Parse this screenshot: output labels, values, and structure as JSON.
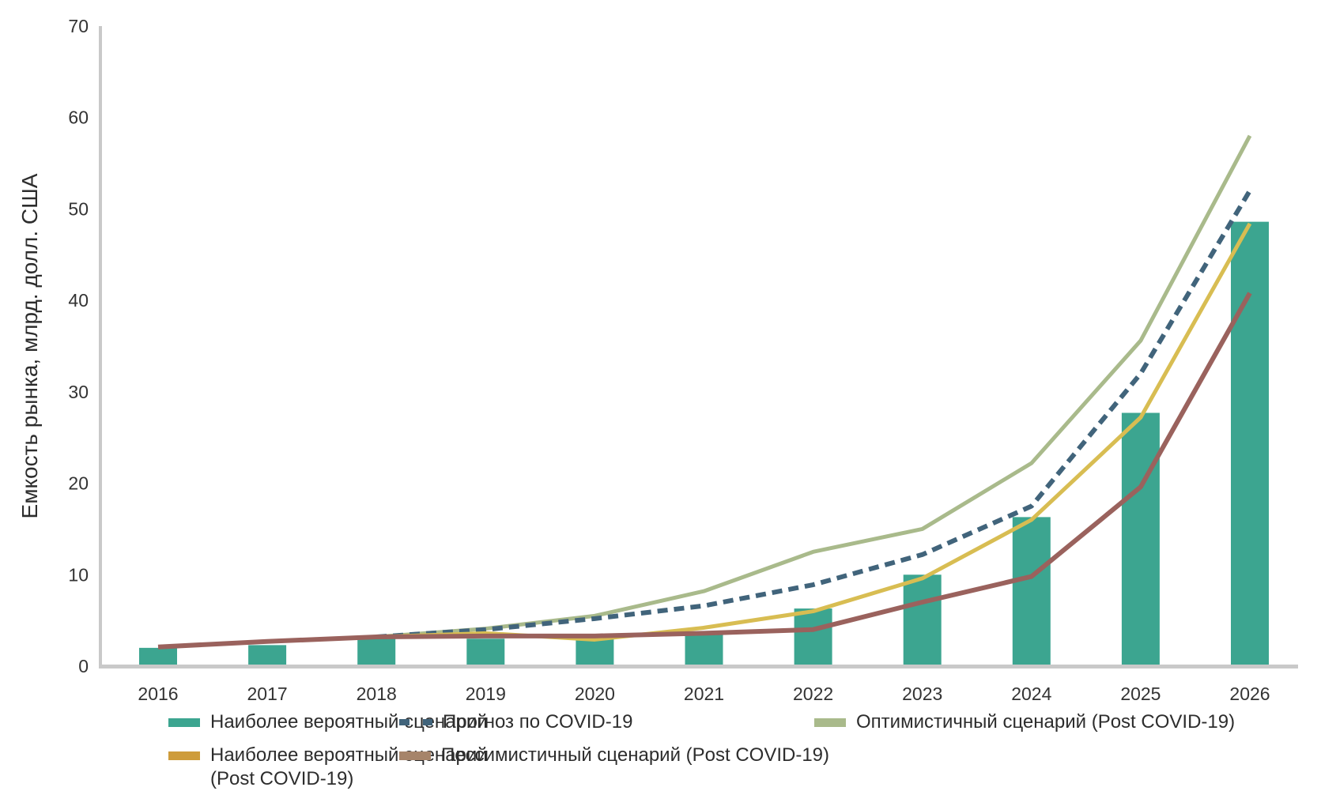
{
  "chart_data": {
    "type": "combo-bar-line",
    "title": "",
    "xlabel": "",
    "ylabel": "Емкость рынка, млрд. долл. США",
    "ylim": [
      0,
      70
    ],
    "y_ticks": [
      0,
      10,
      20,
      30,
      40,
      50,
      60,
      70
    ],
    "categories": [
      "2016",
      "2017",
      "2018",
      "2019",
      "2020",
      "2021",
      "2022",
      "2023",
      "2024",
      "2025",
      "2026"
    ],
    "grid": false,
    "legend_position": "bottom",
    "series": [
      {
        "name": "Наиболее вероятный сценарий",
        "type": "bar",
        "color": "#3CA590",
        "values": [
          2.0,
          2.3,
          3.0,
          3.0,
          3.0,
          3.5,
          6.3,
          10.0,
          16.3,
          27.7,
          48.6
        ]
      },
      {
        "name": "Прогноз по COVID-19",
        "type": "line",
        "style": "dashed",
        "color": "#41647B",
        "values": [
          null,
          null,
          3.2,
          4.0,
          5.2,
          6.6,
          8.9,
          12.2,
          17.5,
          32.0,
          52.0
        ]
      },
      {
        "name": "Оптимистичный сценарий (Post COVID-19)",
        "type": "line",
        "style": "solid",
        "color": "#A9BA8B",
        "values": [
          null,
          null,
          3.2,
          4.1,
          5.5,
          8.2,
          12.5,
          15.0,
          22.2,
          35.6,
          58.0
        ]
      },
      {
        "name": "Наиболее вероятный сценарий (Post COVID-19)",
        "type": "line",
        "style": "solid",
        "color": "#D8BD52",
        "legend_color": "#CE9C3B",
        "values": [
          null,
          null,
          3.2,
          3.6,
          2.9,
          4.2,
          6.0,
          9.6,
          16.0,
          27.2,
          48.4
        ]
      },
      {
        "name": "Пессимистичный сценарий (Post COVID-19)",
        "type": "line",
        "style": "solid",
        "color": "#9A625D",
        "legend_color": "#A6846A",
        "values": [
          2.1,
          2.7,
          3.2,
          3.3,
          3.3,
          3.6,
          4.0,
          7.0,
          9.8,
          19.6,
          40.8
        ]
      }
    ],
    "colors": {
      "axis_line": "#C9C9C9",
      "tick_text": "#333333",
      "background": "#FFFFFF"
    }
  }
}
